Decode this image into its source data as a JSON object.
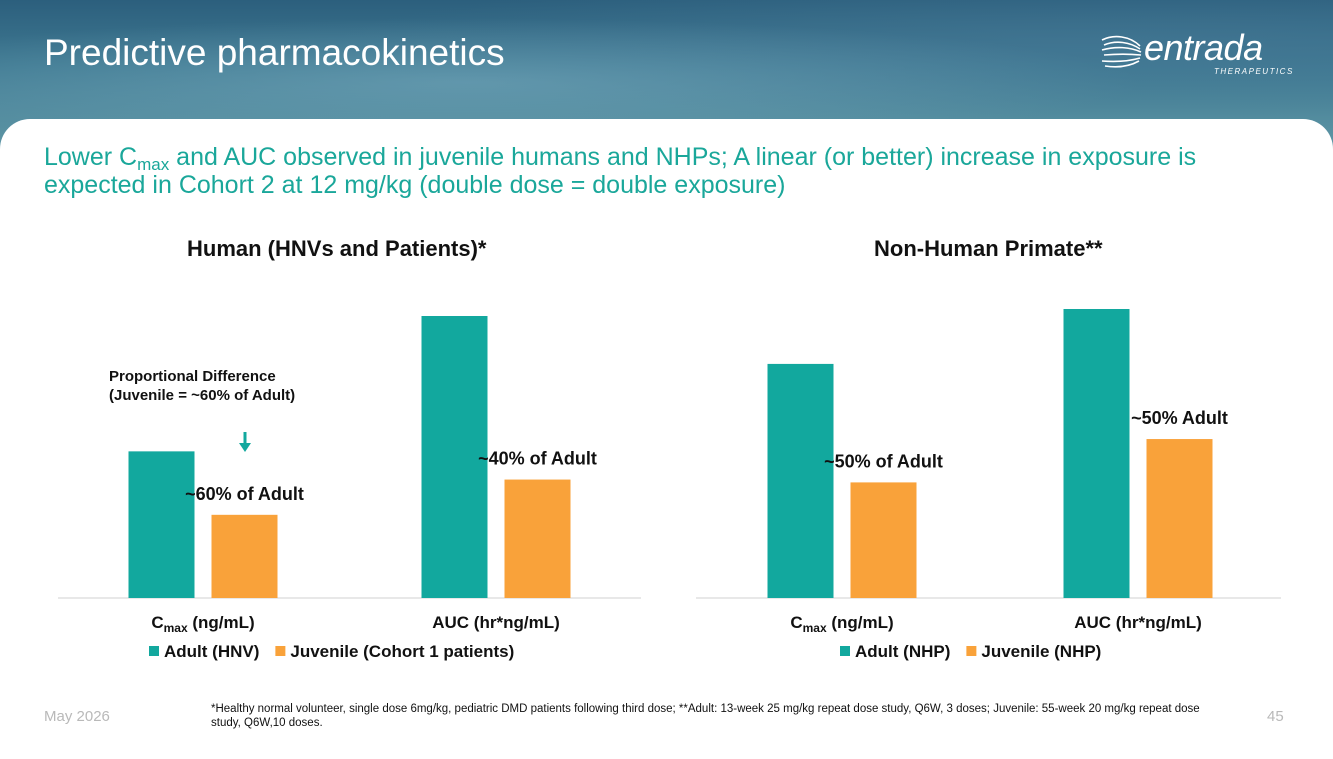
{
  "slide": {
    "title": "Predictive pharmacokinetics",
    "logo_text": "entrada",
    "logo_subtext": "THERAPEUTICS",
    "subtitle_pre": "Lower C",
    "subtitle_sub": "max",
    "subtitle_post": " and AUC observed in juvenile humans and NHPs; A linear (or better) increase in exposure is expected in Cohort 2 at 12 mg/kg (double dose = double exposure)",
    "footer_date": "May 2026",
    "page_number": "45",
    "footnote": "*Healthy normal volunteer, single dose 6mg/kg, pediatric DMD patients following third dose; **Adult: 13-week 25 mg/kg repeat dose study, Q6W, 3 doses; Juvenile: 55-week 20 mg/kg repeat dose study, Q6W,10 doses.",
    "annotation_line1": "Proportional Difference",
    "annotation_line2": "(Juvenile = ~60% of Adult)"
  },
  "colors": {
    "teal": "#12a89e",
    "orange": "#f9a23a",
    "subtitle": "#1aa79a"
  },
  "chart_data": [
    {
      "type": "bar",
      "title": "Human (HNVs and Patients)*",
      "categories": [
        {
          "main": "C",
          "sub": "max",
          "rest": " (ng/mL)"
        },
        {
          "main": "AUC (hr*ng/mL)",
          "sub": "",
          "rest": ""
        }
      ],
      "series": [
        {
          "name": "Adult (HNV)",
          "color": "#12a89e",
          "values": [
            0.52,
            1.0
          ]
        },
        {
          "name": "Juvenile (Cohort 1 patients)",
          "color": "#f9a23a",
          "values": [
            0.295,
            0.42
          ]
        }
      ],
      "data_labels": [
        {
          "series": 1,
          "index": 0,
          "text": "~60% of Adult"
        },
        {
          "series": 1,
          "index": 1,
          "text": "~40% of Adult"
        }
      ],
      "ylim": [
        0,
        1.05
      ],
      "grid": false,
      "legend_position": "bottom",
      "y_axis_shown": false
    },
    {
      "type": "bar",
      "title": "Non-Human Primate**",
      "categories": [
        {
          "main": "C",
          "sub": "max",
          "rest": " (ng/mL)"
        },
        {
          "main": "AUC (hr*ng/mL)",
          "sub": "",
          "rest": ""
        }
      ],
      "series": [
        {
          "name": "Adult (NHP)",
          "color": "#12a89e",
          "values": [
            0.81,
            1.0
          ]
        },
        {
          "name": "Juvenile (NHP)",
          "color": "#f9a23a",
          "values": [
            0.4,
            0.55
          ]
        }
      ],
      "data_labels": [
        {
          "series": 1,
          "index": 0,
          "text": "~50% of Adult"
        },
        {
          "series": 1,
          "index": 1,
          "text": "~50% Adult"
        }
      ],
      "ylim": [
        0,
        1.05
      ],
      "grid": false,
      "legend_position": "bottom",
      "y_axis_shown": false
    }
  ]
}
